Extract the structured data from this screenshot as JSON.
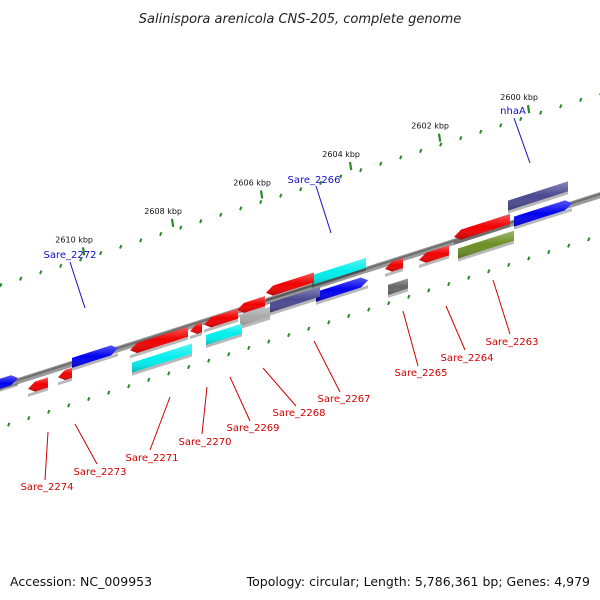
{
  "title": "Salinispora arenicola CNS-205, complete genome",
  "footer": {
    "accession": "Accession: NC_009953",
    "summary": "Topology: circular; Length: 5,786,361 bp; Genes: 4,979"
  },
  "colors": {
    "backbone": "#7a7a7a",
    "tick": "#2a8a2a",
    "red": "#f00000",
    "blue": "#0000ee",
    "cyan": "#00eeee",
    "navy": "#4a4890",
    "gray": "#a9a9a9",
    "dark_gray": "#666666",
    "olive": "#6b8e23",
    "label_blue": "#1010c0",
    "label_red": "#d00000"
  },
  "ticks": [
    {
      "label": "2600 kbp",
      "value": 2600
    },
    {
      "label": "2602 kbp",
      "value": 2602
    },
    {
      "label": "2604 kbp",
      "value": 2604
    },
    {
      "label": "2606 kbp",
      "value": 2606
    },
    {
      "label": "2608 kbp",
      "value": 2608
    },
    {
      "label": "2610 kbp",
      "value": 2610
    }
  ],
  "forward_genes": [
    {
      "name": "nhaA",
      "color": "navy",
      "labeled": true
    },
    {
      "name": "",
      "color": "blue",
      "labeled": false
    },
    {
      "name": "Sare_2266",
      "color": "cyan",
      "labeled": true
    },
    {
      "name": "",
      "color": "blue",
      "labeled": false
    },
    {
      "name": "Sare_2272",
      "color": "blue",
      "labeled": true
    },
    {
      "name": "",
      "color": "blue",
      "labeled": false
    }
  ],
  "reverse_genes": [
    {
      "name": "Sare_2263",
      "color": "olive"
    },
    {
      "name": "Sare_2264",
      "color": "red"
    },
    {
      "name": "Sare_2265",
      "color": "dark_gray"
    },
    {
      "name": "Sare_2267",
      "color": "navy"
    },
    {
      "name": "Sare_2268",
      "color": "gray"
    },
    {
      "name": "Sare_2269",
      "color": "cyan"
    },
    {
      "name": "Sare_2270",
      "color": "red"
    },
    {
      "name": "Sare_2271",
      "color": "cyan"
    },
    {
      "name": "Sare_2273",
      "color": "red"
    },
    {
      "name": "Sare_2274",
      "color": "red"
    }
  ]
}
